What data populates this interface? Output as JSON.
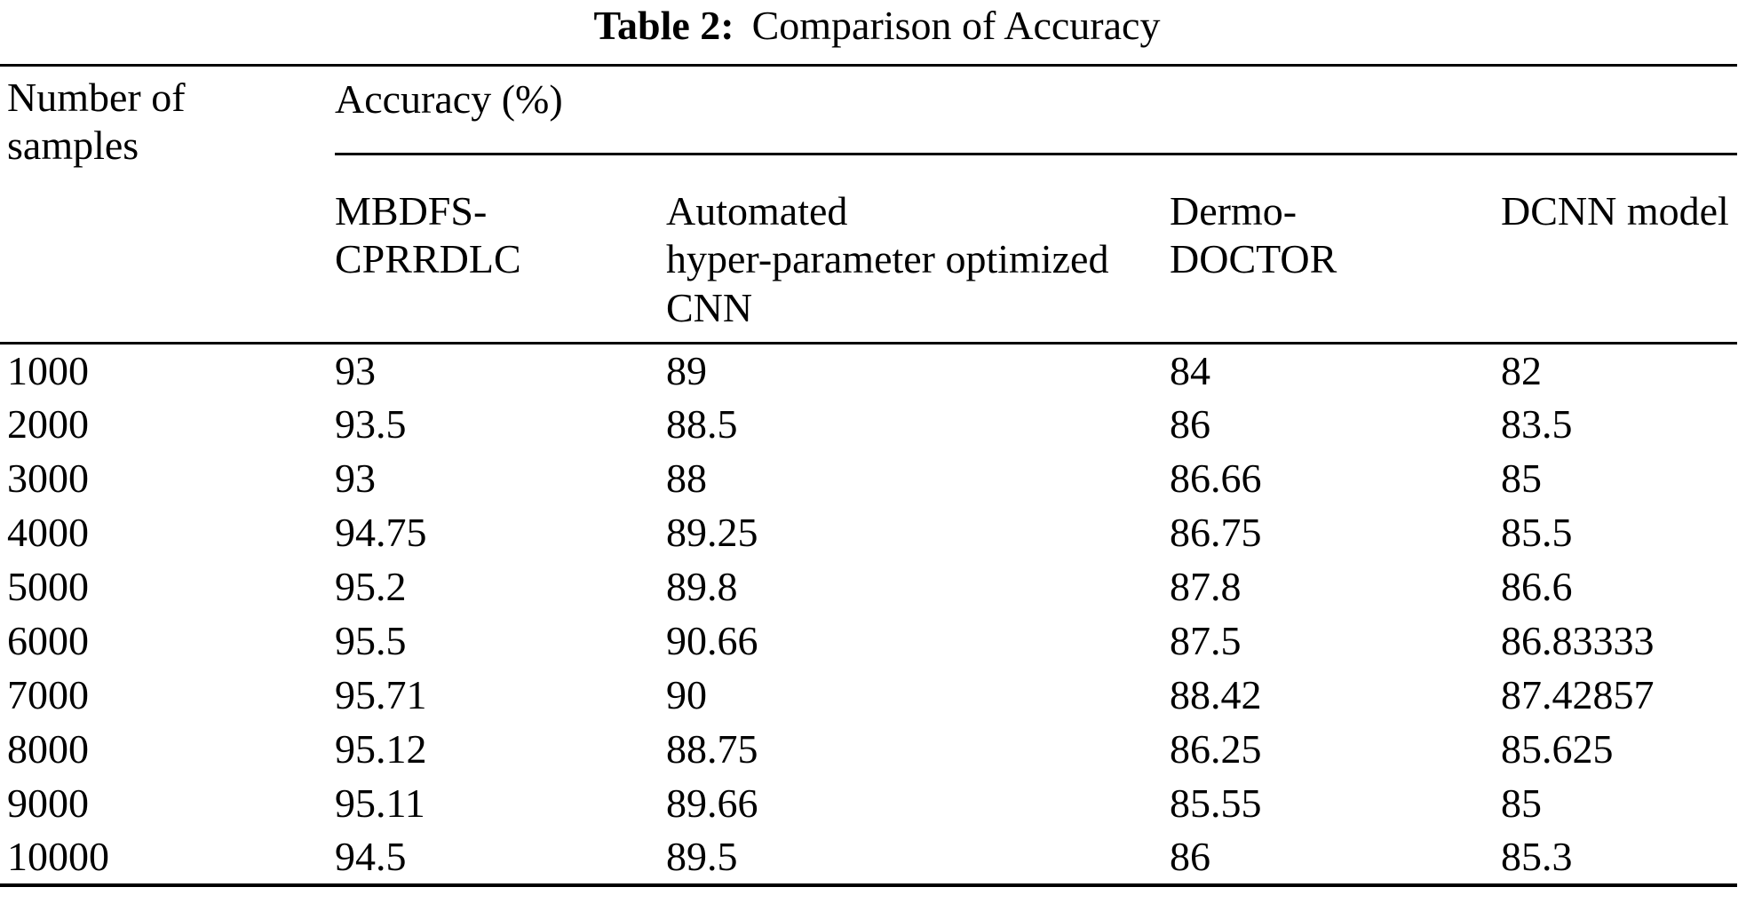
{
  "caption": {
    "label": "Table 2:",
    "text": "Comparison of Accuracy"
  },
  "table": {
    "row_header": {
      "name": "Number of samples",
      "lines": [
        "Number of",
        "samples"
      ]
    },
    "group_header": "Accuracy (%)",
    "columns": [
      {
        "name": "MBDFS-CPRRDLC",
        "lines": [
          "MBDFS-",
          "CPRRDLC"
        ]
      },
      {
        "name": "Automated hyper-parameter optimized CNN",
        "lines": [
          "Automated",
          "hyper-parameter optimized",
          "CNN"
        ]
      },
      {
        "name": "Dermo-DOCTOR",
        "lines": [
          "Dermo-",
          "DOCTOR"
        ]
      },
      {
        "name": "DCNN model",
        "lines": [
          "DCNN model"
        ]
      }
    ],
    "rows": [
      {
        "samples": "1000",
        "values": [
          "93",
          "89",
          "84",
          "82"
        ]
      },
      {
        "samples": "2000",
        "values": [
          "93.5",
          "88.5",
          "86",
          "83.5"
        ]
      },
      {
        "samples": "3000",
        "values": [
          "93",
          "88",
          "86.66",
          "85"
        ]
      },
      {
        "samples": "4000",
        "values": [
          "94.75",
          "89.25",
          "86.75",
          "85.5"
        ]
      },
      {
        "samples": "5000",
        "values": [
          "95.2",
          "89.8",
          "87.8",
          "86.6"
        ]
      },
      {
        "samples": "6000",
        "values": [
          "95.5",
          "90.66",
          "87.5",
          "86.83333"
        ]
      },
      {
        "samples": "7000",
        "values": [
          "95.71",
          "90",
          "88.42",
          "87.42857"
        ]
      },
      {
        "samples": "8000",
        "values": [
          "95.12",
          "88.75",
          "86.25",
          "85.625"
        ]
      },
      {
        "samples": "9000",
        "values": [
          "95.11",
          "89.66",
          "85.55",
          "85"
        ]
      },
      {
        "samples": "10000",
        "values": [
          "94.5",
          "89.5",
          "86",
          "85.3"
        ]
      }
    ]
  },
  "colors": {
    "text": "#000000",
    "background": "#ffffff",
    "rule": "#000000"
  },
  "chart_data": {
    "type": "table",
    "title": "Table 2: Comparison of Accuracy",
    "xlabel": "Number of samples",
    "ylabel": "Accuracy (%)",
    "categories": [
      1000,
      2000,
      3000,
      4000,
      5000,
      6000,
      7000,
      8000,
      9000,
      10000
    ],
    "series": [
      {
        "name": "MBDFS-CPRRDLC",
        "values": [
          93,
          93.5,
          93,
          94.75,
          95.2,
          95.5,
          95.71,
          95.12,
          95.11,
          94.5
        ]
      },
      {
        "name": "Automated hyper-parameter optimized CNN",
        "values": [
          89,
          88.5,
          88,
          89.25,
          89.8,
          90.66,
          90,
          88.75,
          89.66,
          89.5
        ]
      },
      {
        "name": "Dermo-DOCTOR",
        "values": [
          84,
          86,
          86.66,
          86.75,
          87.8,
          87.5,
          88.42,
          86.25,
          85.55,
          86
        ]
      },
      {
        "name": "DCNN model",
        "values": [
          82,
          83.5,
          85,
          85.5,
          86.6,
          86.83333,
          87.42857,
          85.625,
          85,
          85.3
        ]
      }
    ]
  }
}
